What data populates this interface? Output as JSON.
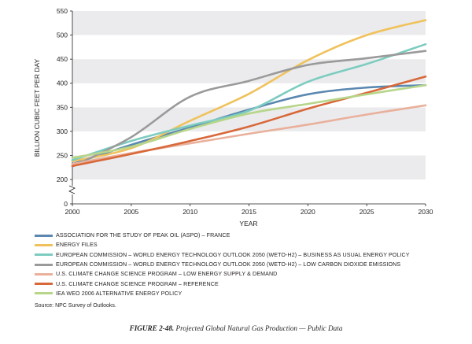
{
  "chart_data": {
    "type": "line",
    "title": "Projected Global Natural Gas Production — Public Data",
    "xlabel": "YEAR",
    "ylabel": "BILLION CUBIC FEET PER DAY",
    "xlim": [
      2000,
      2030
    ],
    "ylim": [
      0,
      550
    ],
    "axis_break": true,
    "x_ticks": [
      2000,
      2005,
      2010,
      2015,
      2020,
      2025,
      2030
    ],
    "y_ticks": [
      0,
      200,
      250,
      300,
      350,
      400,
      450,
      500,
      550
    ],
    "background": "alternating grey bands",
    "series": [
      {
        "name": "ASSOCIATION FOR THE STUDY OF PEAK OIL (ASPO) – FRANCE",
        "color": "#5a88b0",
        "x": [
          2000,
          2005,
          2010,
          2015,
          2020,
          2025,
          2030
        ],
        "values": [
          232,
          272,
          308,
          345,
          377,
          391,
          396
        ]
      },
      {
        "name": "ENERGY FILES",
        "color": "#f0c25c",
        "x": [
          2000,
          2005,
          2010,
          2015,
          2020,
          2025,
          2030
        ],
        "values": [
          238,
          265,
          322,
          378,
          448,
          500,
          531
        ]
      },
      {
        "name": "EUROPEAN COMMISSION – WORLD ENERGY TECHNOLOGY OUTLOOK 2050 (WETO-H2) – BUSINESS AS USUAL ENERGY POLICY",
        "color": "#7dccc0",
        "x": [
          2000,
          2005,
          2010,
          2015,
          2020,
          2025,
          2030
        ],
        "values": [
          240,
          280,
          312,
          343,
          403,
          440,
          481
        ]
      },
      {
        "name": "EUROPEAN COMMISSION – WORLD ENERGY TECHNOLOGY OUTLOOK 2050 (WETO-H2) – LOW CARBON DIOXIDE EMISSIONS",
        "color": "#9a9a9a",
        "x": [
          2000,
          2005,
          2010,
          2015,
          2020,
          2025,
          2030
        ],
        "values": [
          227,
          288,
          372,
          405,
          438,
          452,
          467
        ]
      },
      {
        "name": "U.S. CLIMATE CHANGE SCIENCE PROGRAM – LOW ENERGY SUPPLY & DEMAND",
        "color": "#e9b09b",
        "x": [
          2000,
          2005,
          2010,
          2015,
          2020,
          2025,
          2030
        ],
        "values": [
          232,
          255,
          275,
          295,
          314,
          335,
          354
        ]
      },
      {
        "name": "U.S. CLIMATE CHANGE SCIENCE PROGRAM – REFERENCE",
        "color": "#d8683a",
        "x": [
          2000,
          2005,
          2010,
          2015,
          2020,
          2025,
          2030
        ],
        "values": [
          228,
          253,
          280,
          310,
          347,
          380,
          414
        ]
      },
      {
        "name": "IEA WEO 2006 ALTERNATIVE ENERGY POLICY",
        "color": "#b7d68a",
        "x": [
          2000,
          2005,
          2010,
          2015,
          2020,
          2025,
          2030
        ],
        "values": [
          245,
          268,
          305,
          337,
          357,
          377,
          396
        ]
      }
    ]
  },
  "source": "Source: NPC Survey of Outlooks.",
  "caption": {
    "label": "FIGURE 2-48.",
    "text": "Projected Global Natural Gas Production — Public Data"
  }
}
